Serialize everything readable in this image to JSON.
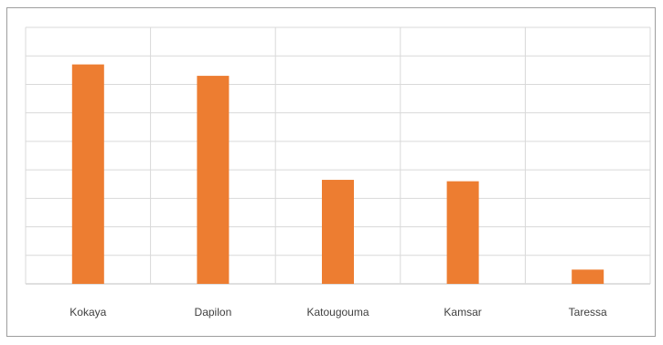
{
  "chart_data": {
    "type": "bar",
    "title": "",
    "xlabel": "",
    "ylabel": "",
    "categories": [
      "Kokaya",
      "Dapilon",
      "Katougouma",
      "Kamsar",
      "Taressa"
    ],
    "series": [
      {
        "values": [
          7.7,
          7.3,
          3.65,
          3.6,
          0.5
        ],
        "color": "#ED7D31"
      }
    ],
    "ylim": [
      0,
      9
    ],
    "grid": true,
    "legend": "none"
  }
}
